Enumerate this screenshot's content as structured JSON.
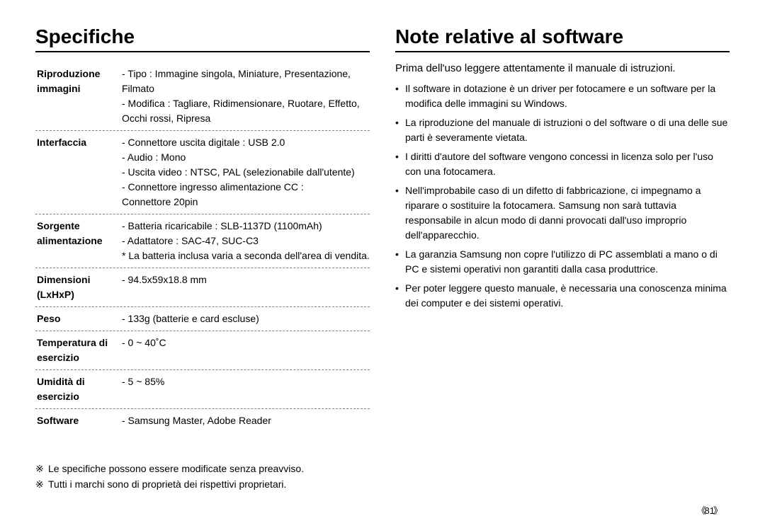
{
  "page_number": "81",
  "left": {
    "title": "Specifiche",
    "rows": [
      {
        "label": "Riproduzione\nimmagini",
        "value": "- Tipo : Immagine singola, Miniature, Presentazione,\n      Filmato\n- Modifica : Tagliare, Ridimensionare, Ruotare, Effetto,\n      Occhi rossi, Ripresa"
      },
      {
        "label": "Interfaccia",
        "value": "- Connettore uscita digitale : USB 2.0\n- Audio : Mono\n- Uscita video : NTSC,  PAL (selezionabile dall'utente)\n- Connettore ingresso alimentazione CC :\n   Connettore 20pin"
      },
      {
        "label": "Sorgente\nalimentazione",
        "value": "- Batteria ricaricabile : SLB-1137D (1100mAh)\n- Adattatore : SAC-47, SUC-C3\n* La batteria inclusa varia a seconda dell'area di vendita."
      },
      {
        "label": "Dimensioni\n(LxHxP)",
        "value": "- 94.5x59x18.8 mm"
      },
      {
        "label": "Peso",
        "value": "- 133g (batterie e card escluse)"
      },
      {
        "label": "Temperatura di\nesercizio",
        "value": "- 0 ~ 40˚C"
      },
      {
        "label": "Umidità di\nesercizio",
        "value": "- 5 ~ 85%"
      },
      {
        "label": "Software",
        "value": "- Samsung Master, Adobe Reader"
      }
    ],
    "footnotes": [
      "Le specifiche possono essere modificate senza preavviso.",
      "Tutti i marchi sono di proprietà dei rispettivi proprietari."
    ],
    "footnote_symbol": "※"
  },
  "right": {
    "title": "Note relative al software",
    "intro": "Prima dell'uso leggere attentamente il manuale di istruzioni.",
    "bullets": [
      "Il software in dotazione è un driver per fotocamere e un software per la modifica delle immagini su Windows.",
      "La riproduzione del manuale di istruzioni o del software o di una delle sue parti è severamente vietata.",
      "I diritti d'autore del software vengono concessi in licenza solo per l'uso con una fotocamera.",
      "Nell'improbabile caso di un difetto di fabbricazione, ci impegnamo a riparare o sostituire la fotocamera. Samsung non sarà tuttavia responsabile in alcun modo di danni provocati dall'uso improprio dell'apparecchio.",
      "La garanzia Samsung non copre l'utilizzo di PC assemblati a mano o di PC e sistemi operativi non garantiti dalla casa produttrice.",
      "Per poter leggere questo manuale, è necessaria una conoscenza minima dei computer e dei sistemi operativi."
    ],
    "bullet_symbol": "•"
  }
}
